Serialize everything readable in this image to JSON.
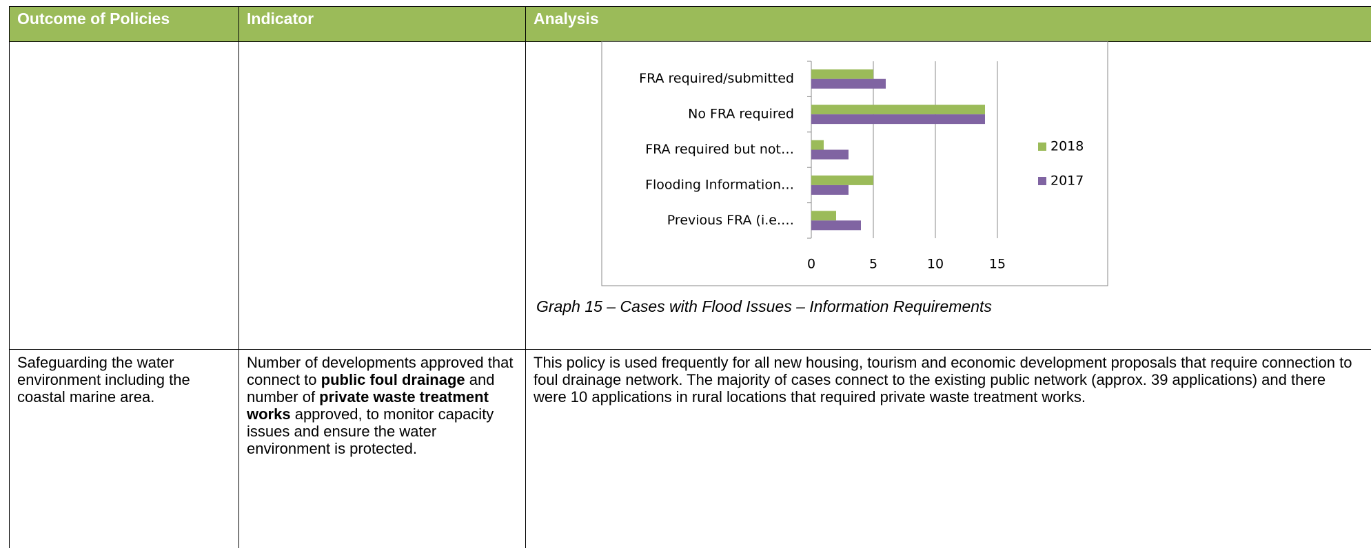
{
  "table": {
    "header": [
      "Outcome of Policies",
      "Indicator",
      "Analysis"
    ],
    "row": {
      "outcome": "Safeguarding the water environment including the coastal marine area.",
      "indicator": [
        {
          "text": "Number of developments approved that connect to ",
          "bold": false
        },
        {
          "text": "public foul drainage",
          "bold": true
        },
        {
          "text": " and number of ",
          "bold": false
        },
        {
          "text": "private waste treatment works",
          "bold": true
        },
        {
          "text": " approved, to monitor capacity issues and ensure the water environment is protected.",
          "bold": false
        }
      ],
      "analysis": "This policy is used frequently for all new housing, tourism and economic development proposals that require connection to foul drainage network. The majority of cases connect to the existing public network (approx. 39 applications) and there were 10 applications in rural locations that required private waste treatment works."
    }
  },
  "caption": "Graph 15 – Cases with Flood Issues – Information Requirements",
  "chart_data": {
    "type": "barh",
    "categories": [
      "FRA required/submitted",
      "No FRA required",
      "FRA required but not…",
      "Flooding Information…",
      "Previous FRA (i.e.…"
    ],
    "series": [
      {
        "name": "2018",
        "color": "#9bbb59",
        "values": [
          5,
          14,
          1,
          5,
          2
        ]
      },
      {
        "name": "2017",
        "color": "#8064a2",
        "values": [
          6,
          14,
          3,
          3,
          4
        ]
      }
    ],
    "xlim": [
      0,
      15
    ],
    "xticks": [
      0,
      5,
      10,
      15
    ],
    "grid": true,
    "legend": "right"
  }
}
